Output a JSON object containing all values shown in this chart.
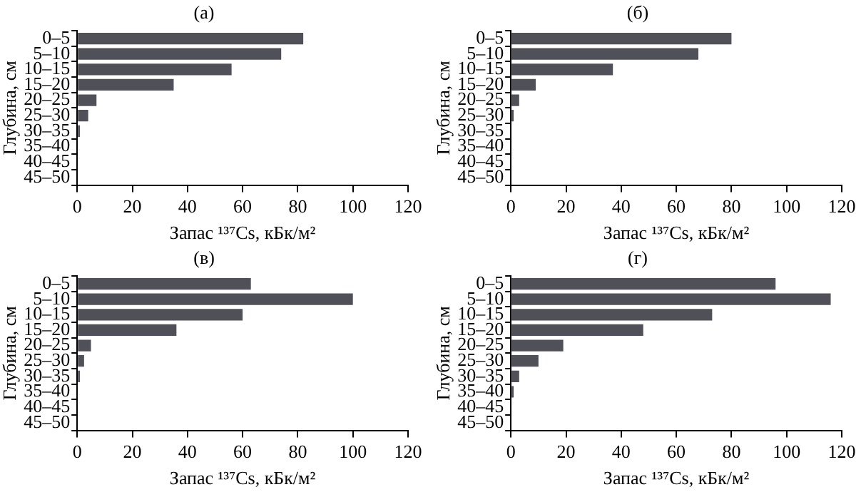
{
  "chart_data": [
    {
      "type": "bar",
      "orientation": "horizontal",
      "title": "(а)",
      "xlabel": "Запас ¹³⁷Cs, кБк/м²",
      "ylabel": "Глубина, см",
      "categories": [
        "0–5",
        "5–10",
        "10–15",
        "15–20",
        "20–25",
        "25–30",
        "30–35",
        "35–40",
        "40–45",
        "45–50"
      ],
      "values": [
        82,
        74,
        56,
        35,
        7,
        4,
        1,
        null,
        0,
        0
      ],
      "color": "#505058",
      "xlim": [
        0,
        120
      ],
      "xticks": [
        0,
        20,
        40,
        60,
        80,
        100,
        120
      ],
      "grid": false,
      "legend": false
    },
    {
      "type": "bar",
      "orientation": "horizontal",
      "title": "(б)",
      "xlabel": "Запас ¹³⁷Cs, кБк/м²",
      "ylabel": "Глубина, см",
      "categories": [
        "0–5",
        "5–10",
        "10–15",
        "15–20",
        "20–25",
        "25–30",
        "30–35",
        "35–40",
        "40–45",
        "45–50"
      ],
      "values": [
        80,
        68,
        37,
        9,
        3,
        1,
        null,
        0,
        0,
        0
      ],
      "color": "#505058",
      "xlim": [
        0,
        120
      ],
      "xticks": [
        0,
        20,
        40,
        60,
        80,
        100,
        120
      ],
      "grid": false,
      "legend": false
    },
    {
      "type": "bar",
      "orientation": "horizontal",
      "title": "(в)",
      "xlabel": "Запас ¹³⁷Cs, кБк/м²",
      "ylabel": "Глубина, см",
      "categories": [
        "0–5",
        "5–10",
        "10–15",
        "15–20",
        "20–25",
        "25–30",
        "30–35",
        "35–40",
        "40–45",
        "45–50"
      ],
      "values": [
        63,
        100,
        60,
        36,
        5,
        2.5,
        1,
        null,
        0,
        0
      ],
      "color": "#505058",
      "xlim": [
        0,
        120
      ],
      "xticks": [
        0,
        20,
        40,
        60,
        80,
        100,
        120
      ],
      "grid": false,
      "legend": false
    },
    {
      "type": "bar",
      "orientation": "horizontal",
      "title": "(г)",
      "xlabel": "Запас ¹³⁷Cs, кБк/м²",
      "ylabel": "Глубина, см",
      "categories": [
        "0–5",
        "5–10",
        "10–15",
        "15–20",
        "20–25",
        "25–30",
        "30–35",
        "35–40",
        "40–45",
        "45–50"
      ],
      "values": [
        96,
        116,
        73,
        48,
        19,
        10,
        3,
        1,
        0,
        0
      ],
      "color": "#505058",
      "xlim": [
        0,
        120
      ],
      "xticks": [
        0,
        20,
        40,
        60,
        80,
        100,
        120
      ],
      "grid": false,
      "legend": false
    }
  ]
}
